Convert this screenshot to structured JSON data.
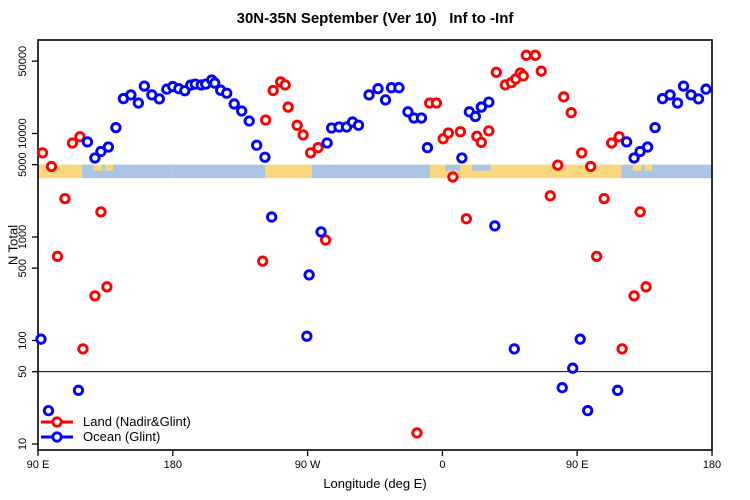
{
  "chart_data": {
    "type": "scatter",
    "title": "30N-35N September (Ver 10)   Inf to -Inf",
    "xlabel": "Longitude (deg E)",
    "ylabel": "N Total",
    "x_axis": {
      "domain_deg_e": [
        90,
        540
      ],
      "ticks": [
        {
          "pos": 90,
          "label": "90 E"
        },
        {
          "pos": 180,
          "label": "180"
        },
        {
          "pos": 270,
          "label": "90 W"
        },
        {
          "pos": 360,
          "label": "0"
        },
        {
          "pos": 450,
          "label": "90 E"
        },
        {
          "pos": 540,
          "label": "180"
        }
      ]
    },
    "y_axis": {
      "scale": "log",
      "range": [
        9,
        80000
      ],
      "ticks": [
        {
          "value": 50000,
          "label": "50000"
        },
        {
          "value": 10000,
          "label": "10000"
        },
        {
          "value": 5000,
          "label": "5000"
        },
        {
          "value": 1000,
          "label": "1000"
        },
        {
          "value": 500,
          "label": "500"
        },
        {
          "value": 100,
          "label": "100"
        },
        {
          "value": 50,
          "label": "50"
        },
        {
          "value": 10,
          "label": "10"
        }
      ]
    },
    "reference_line_value": 50,
    "frame_color": "#000000",
    "series": [
      {
        "name": "Land (Nadir&Glint)",
        "color": "#FF0000",
        "marker": "open-circle",
        "points": [
          [
            93,
            6500
          ],
          [
            99,
            4800
          ],
          [
            108,
            2350
          ],
          [
            113,
            8100
          ],
          [
            118,
            9300
          ],
          [
            132,
            1750
          ],
          [
            128,
            270
          ],
          [
            136,
            330
          ],
          [
            120,
            83
          ],
          [
            103,
            650
          ],
          [
            -118,
            13500
          ],
          [
            -113,
            26000
          ],
          [
            -108,
            31500
          ],
          [
            -105,
            29500
          ],
          [
            -103,
            18000
          ],
          [
            -97,
            12000
          ],
          [
            -93,
            9700
          ],
          [
            -88,
            6500
          ],
          [
            -83,
            7300
          ],
          [
            -120,
            585
          ],
          [
            -78,
            935
          ],
          [
            -17,
            12.8
          ],
          [
            -8.5,
            19700
          ],
          [
            -4,
            19700
          ],
          [
            0.5,
            8900
          ],
          [
            4,
            10100
          ],
          [
            12,
            10400
          ],
          [
            23,
            9400
          ],
          [
            26,
            8200
          ],
          [
            31,
            10600
          ],
          [
            7,
            3800
          ],
          [
            16,
            1500
          ],
          [
            36,
            39000
          ],
          [
            42,
            29500
          ],
          [
            46,
            31000
          ],
          [
            49,
            33700
          ],
          [
            52,
            38400
          ],
          [
            54,
            36000
          ],
          [
            56,
            57000
          ],
          [
            62,
            57000
          ],
          [
            66,
            40000
          ],
          [
            81,
            22600
          ],
          [
            86,
            15900
          ],
          [
            77,
            4950
          ],
          [
            72,
            2500
          ]
        ]
      },
      {
        "name": "Ocean (Glint)",
        "color": "#0000FF",
        "marker": "open-circle",
        "points": [
          [
            92,
            103
          ],
          [
            97,
            21
          ],
          [
            117,
            33
          ],
          [
            123,
            8300
          ],
          [
            128,
            5800
          ],
          [
            132,
            6700
          ],
          [
            137,
            7400
          ],
          [
            142,
            11400
          ],
          [
            147,
            21700
          ],
          [
            152,
            23600
          ],
          [
            157,
            19700
          ],
          [
            161,
            28700
          ],
          [
            166,
            23600
          ],
          [
            171,
            21600
          ],
          [
            176,
            26800
          ],
          [
            -180,
            28400
          ],
          [
            -176,
            27100
          ],
          [
            -172,
            25900
          ],
          [
            -168,
            29400
          ],
          [
            -165,
            30000
          ],
          [
            -161,
            29400
          ],
          [
            -158,
            30000
          ],
          [
            -154,
            32900
          ],
          [
            -152,
            30700
          ],
          [
            -148,
            26200
          ],
          [
            -144,
            24500
          ],
          [
            -139,
            19300
          ],
          [
            -134,
            16500
          ],
          [
            -129,
            13200
          ],
          [
            -124,
            7700
          ],
          [
            -118.5,
            5900
          ],
          [
            -114,
            1560
          ],
          [
            -81,
            1120
          ],
          [
            -89,
            430
          ],
          [
            -90.5,
            110
          ],
          [
            -77,
            8100
          ],
          [
            -74,
            11300
          ],
          [
            -69,
            11550
          ],
          [
            -64,
            11550
          ],
          [
            -60,
            12900
          ],
          [
            -56,
            12000
          ],
          [
            -49,
            23600
          ],
          [
            -43,
            27100
          ],
          [
            -38,
            21100
          ],
          [
            -34,
            27700
          ],
          [
            -29,
            27700
          ],
          [
            -23,
            16200
          ],
          [
            -19,
            14100
          ],
          [
            -14,
            14100
          ],
          [
            -10,
            7300
          ],
          [
            13,
            5800
          ],
          [
            18,
            16200
          ],
          [
            22,
            14600
          ],
          [
            26,
            18000
          ],
          [
            31,
            20100
          ],
          [
            35,
            1280
          ],
          [
            48,
            83
          ],
          [
            80,
            35
          ],
          [
            87,
            54
          ]
        ]
      }
    ],
    "surface_band": {
      "description": "land/ocean strip along longitude near N=5000",
      "top_value": 5000,
      "bottom_value": 3700,
      "land_color": "#FBD87E",
      "ocean_color": "#A9C4E4",
      "segments": [
        {
          "type": "ocean",
          "from": -180,
          "to": -118.4
        },
        {
          "type": "land",
          "from": -118.4,
          "to": -87.1
        },
        {
          "type": "ocean",
          "from": -87.1,
          "to": -8.3
        },
        {
          "type": "land",
          "from": -8.3,
          "to": 119.5
        },
        {
          "type": "ocean",
          "from": 119.5,
          "to": 180
        }
      ],
      "speckles": [
        {
          "type": "land",
          "from": 127,
          "to": 133
        },
        {
          "type": "land",
          "from": 135,
          "to": 140
        },
        {
          "type": "ocean",
          "from": 2,
          "to": 12
        },
        {
          "type": "ocean",
          "from": 20,
          "to": 32
        }
      ]
    },
    "legend": {
      "position": "bottom-left",
      "entries_note": "labels mirror series names"
    }
  }
}
